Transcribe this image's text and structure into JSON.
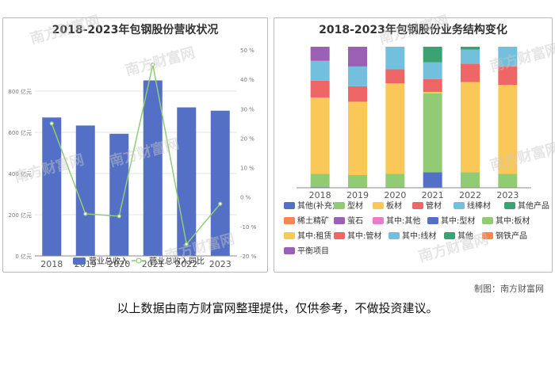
{
  "watermark": "南方财富网",
  "credit": "制图：南方财富网",
  "disclaimer": "以上数据由南方财富网整理提供，仅供参考，不做投资建议。",
  "chart_data": [
    {
      "type": "bar",
      "title": "2018-2023年包钢股份营收状况",
      "categories": [
        "2018",
        "2019",
        "2020",
        "2021",
        "2022",
        "2023"
      ],
      "series": [
        {
          "name": "营业总收入",
          "axis": "left",
          "type": "bar",
          "color": "#5470c6",
          "values": [
            672,
            633,
            593,
            852,
            721,
            705
          ]
        },
        {
          "name": "营业总收入同比",
          "axis": "right",
          "type": "line",
          "color": "#91cc75",
          "values": [
            25,
            -5.7,
            -6.5,
            45,
            -16,
            -2.3
          ]
        }
      ],
      "y_left": {
        "min": 0,
        "max": 1000,
        "ticks": [
          0,
          200,
          400,
          600,
          800
        ],
        "tick_labels": [
          "0 亿元",
          "200 亿元",
          "400 亿元",
          "600 亿元",
          "800 亿元"
        ]
      },
      "y_right": {
        "min": -20,
        "max": 50,
        "ticks": [
          -20,
          -10,
          0,
          10,
          20,
          30,
          40,
          50
        ],
        "tick_labels": [
          "-20 %",
          "-10 %",
          "0 %",
          "10 %",
          "20 %",
          "30 %",
          "40 %",
          "50 %"
        ]
      },
      "legend_position": "bottom",
      "grid": true
    },
    {
      "type": "bar",
      "stacked": true,
      "title": "2018-2023年包钢股份业务结构变化",
      "categories": [
        "2018",
        "2019",
        "2020",
        "2021",
        "2022",
        "2023"
      ],
      "unit": "percent",
      "series": [
        {
          "name": "其他(补充)",
          "color": "#5470c6",
          "values": [
            0.5,
            0,
            0,
            0,
            0,
            0
          ]
        },
        {
          "name": "型材",
          "color": "#91cc75",
          "values": [
            9.5,
            9,
            10,
            0,
            11,
            10
          ]
        },
        {
          "name": "板材",
          "color": "#fac858",
          "values": [
            54,
            52,
            64,
            0,
            64,
            63
          ]
        },
        {
          "name": "管材",
          "color": "#ee6666",
          "values": [
            12,
            11,
            10,
            0,
            13,
            13
          ]
        },
        {
          "name": "线棒材",
          "color": "#73c0de",
          "values": [
            14,
            14,
            16,
            0,
            10,
            14
          ]
        },
        {
          "name": "其他产品",
          "color": "#3ba272",
          "values": [
            0,
            0,
            0,
            0,
            0,
            0
          ]
        },
        {
          "name": "稀土精矿",
          "color": "#fc8452",
          "values": [
            0,
            0,
            0,
            0,
            0,
            0
          ]
        },
        {
          "name": "萤石",
          "color": "#9a60b4",
          "values": [
            10,
            14,
            0,
            0,
            0,
            0
          ]
        },
        {
          "name": "其中:其他",
          "color": "#ea7ccc",
          "values": [
            0,
            0,
            0,
            0,
            0,
            0
          ]
        },
        {
          "name": "其中:型材",
          "color": "#5470c6",
          "values": [
            0,
            0,
            0,
            11,
            0,
            0
          ]
        },
        {
          "name": "其中:板材",
          "color": "#91cc75",
          "values": [
            0,
            0,
            0,
            56,
            0,
            0
          ]
        },
        {
          "name": "其中:租赁",
          "color": "#fac858",
          "values": [
            0,
            0,
            0,
            1,
            0,
            0
          ]
        },
        {
          "name": "其中:管材",
          "color": "#ee6666",
          "values": [
            0,
            0,
            0,
            9,
            0,
            0
          ]
        },
        {
          "name": "其中:线材",
          "color": "#73c0de",
          "values": [
            0,
            0,
            0,
            12,
            0,
            0
          ]
        },
        {
          "name": "其他",
          "color": "#3ba272",
          "values": [
            0,
            0,
            0,
            11,
            2,
            0
          ]
        },
        {
          "name": "钢铁产品",
          "color": "#fc8452",
          "values": [
            0,
            0,
            0,
            0,
            0,
            0
          ]
        },
        {
          "name": "平衡项目",
          "color": "#9a60b4",
          "values": [
            0,
            0,
            0,
            0,
            0,
            0
          ]
        }
      ],
      "ylim": [
        0,
        100
      ],
      "legend_position": "bottom",
      "grid": false
    }
  ]
}
